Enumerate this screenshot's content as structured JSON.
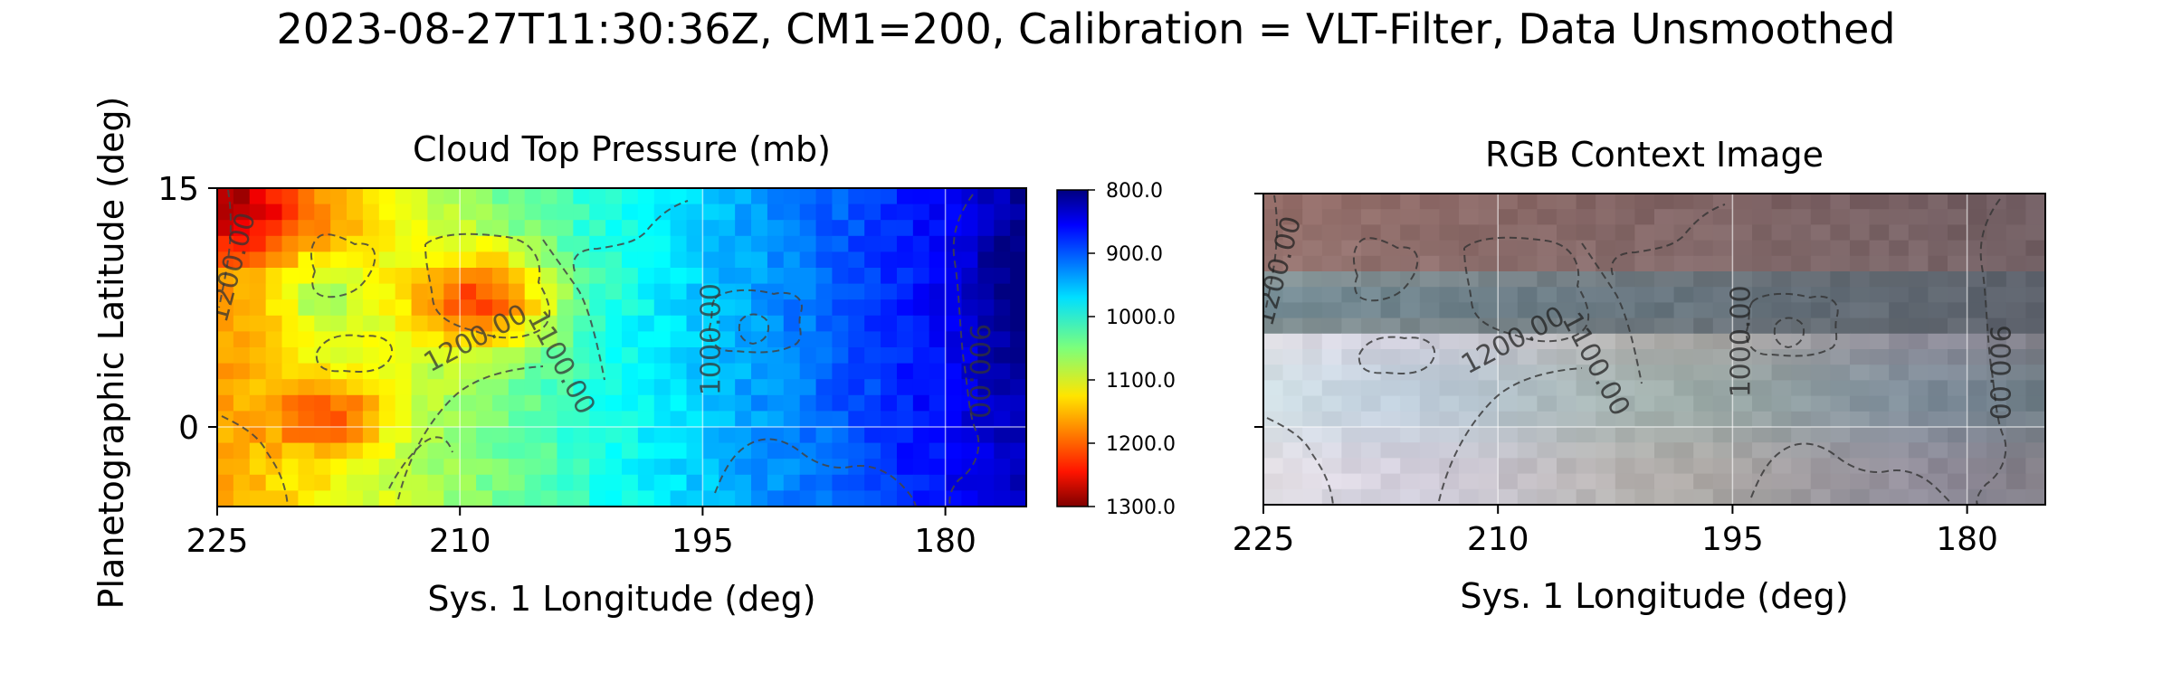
{
  "figure": {
    "suptitle": "2023-08-27T11:30:36Z, CM1=200, Calibration = VLT-Filter, Data Unsmoothed"
  },
  "chart_data": [
    {
      "type": "heatmap",
      "title": "Cloud Top Pressure (mb)",
      "xlabel": "Sys. 1 Longitude (deg)",
      "ylabel": "Planetographic Latitude (deg)",
      "xlim": [
        225,
        175
      ],
      "ylim": [
        -5,
        15
      ],
      "xticks": [
        {
          "value": 225,
          "label": "225"
        },
        {
          "value": 210,
          "label": "210"
        },
        {
          "value": 195,
          "label": "195"
        },
        {
          "value": 180,
          "label": "180"
        }
      ],
      "yticks": [
        {
          "value": 15,
          "label": "15"
        },
        {
          "value": 0,
          "label": "0"
        }
      ],
      "grid": true,
      "colormap": "jet",
      "colorbar": {
        "vmin": 800,
        "vmax": 1300,
        "direction": "inverted",
        "ticks": [
          {
            "value": 800,
            "label": "800.0"
          },
          {
            "value": 900,
            "label": "900.0"
          },
          {
            "value": 1000,
            "label": "1000.0"
          },
          {
            "value": 1100,
            "label": "1100.0"
          },
          {
            "value": 1200,
            "label": "1200.0"
          },
          {
            "value": 1300,
            "label": "1300.0"
          }
        ]
      },
      "grid_size": {
        "cols": 50,
        "rows": 20
      },
      "contour_labels": [
        {
          "text": "1200.00",
          "lon": 224,
          "lat": 10,
          "angle": -75
        },
        {
          "text": "1200.00",
          "lon": 209,
          "lat": 5.5,
          "angle": -28
        },
        {
          "text": "1100.00",
          "lon": 203.8,
          "lat": 4,
          "angle": 62
        },
        {
          "text": "1000.00",
          "lon": 194.4,
          "lat": 5.5,
          "angle": -90
        },
        {
          "text": "900.00",
          "lon": 178,
          "lat": 3.5,
          "angle": 90
        }
      ]
    },
    {
      "type": "image",
      "title": "RGB Context Image",
      "xlabel": "Sys. 1 Longitude (deg)",
      "xlim": [
        225,
        175
      ],
      "ylim": [
        -5,
        15
      ],
      "xticks": [
        {
          "value": 225,
          "label": "225"
        },
        {
          "value": 210,
          "label": "210"
        },
        {
          "value": 195,
          "label": "195"
        },
        {
          "value": 180,
          "label": "180"
        }
      ],
      "yticks": [
        {
          "value": 15,
          "label": ""
        },
        {
          "value": 0,
          "label": ""
        }
      ],
      "grid": true,
      "contour_labels": [
        {
          "text": "1200.00",
          "lon": 224,
          "lat": 10,
          "angle": -75
        },
        {
          "text": "1200.00",
          "lon": 209,
          "lat": 5.5,
          "angle": -28
        },
        {
          "text": "1100.00",
          "lon": 203.8,
          "lat": 4,
          "angle": 62
        },
        {
          "text": "1000.00",
          "lon": 194.4,
          "lat": 5.5,
          "angle": -90
        },
        {
          "text": "900.00",
          "lon": 178,
          "lat": 3.5,
          "angle": 90
        }
      ]
    }
  ]
}
